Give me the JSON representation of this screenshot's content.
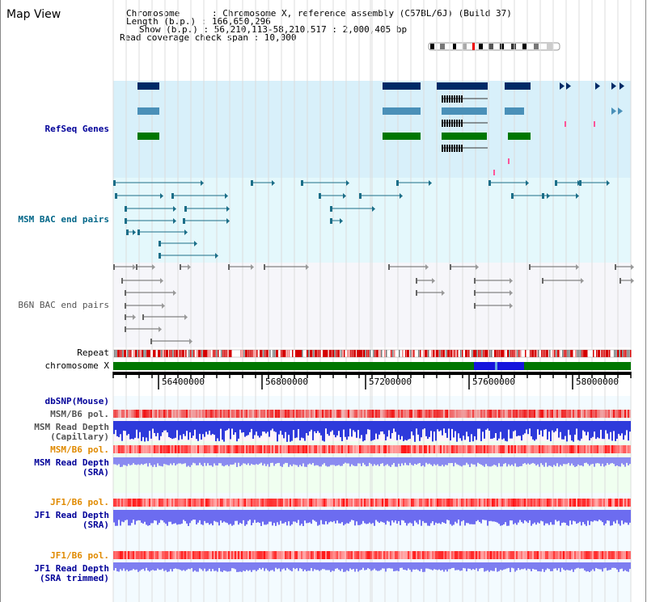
{
  "window": {
    "title": "Map View"
  },
  "header": {
    "chromosome_line": "Chromosome      : Chromosome X, reference assembly (C57BL/6J) (Build 37)",
    "length_line": "Length (b.p.) : 166,650,296",
    "show_line": "Show (b.p.) : 56,210,113-58,210,517 : 2,000,405 bp",
    "coverage_line": "Read coverage check span : 10,000"
  },
  "tracks": {
    "refseq": {
      "label": "RefSeq Genes",
      "color": "#000099"
    },
    "msm_bac": {
      "label": "MSM BAC end pairs",
      "color": "#006688"
    },
    "b6n_bac": {
      "label": "B6N BAC end pairs",
      "color": "#555555"
    },
    "repeat": {
      "label": "Repeat"
    },
    "chromosome": {
      "label": "chromosome X"
    },
    "dbsnp": {
      "label": "dbSNP(Mouse)"
    },
    "msm_b6_pol_1": {
      "label": "MSM/B6 pol."
    },
    "msm_depth_cap": {
      "line1": "MSM Read Depth",
      "line2": "(Capillary)"
    },
    "msm_b6_pol_2": {
      "label": "MSM/B6 pol."
    },
    "msm_depth_sra": {
      "line1": "MSM Read Depth",
      "line2": "(SRA)"
    },
    "jf1_b6_pol_1": {
      "label": "JF1/B6 pol."
    },
    "jf1_depth_sra": {
      "line1": "JF1 Read Depth",
      "line2": "(SRA)"
    },
    "jf1_b6_pol_2": {
      "label": "JF1/B6 pol."
    },
    "jf1_depth_trim": {
      "line1": "JF1 Read Depth",
      "line2": "(SRA trimmed)"
    }
  },
  "axis": {
    "ticks": [
      "56400000",
      "56800000",
      "57200000",
      "57600000",
      "58000000"
    ]
  },
  "colors": {
    "refseq_bg": "#d8f0fa",
    "msm_bg": "#e4f8fc",
    "b6n_bg": "#f6f6fa",
    "chrom_green": "#007700",
    "chrom_blue": "#1515dd",
    "label_blue": "#000099",
    "label_orange": "#e08a00",
    "label_gray": "#555555"
  }
}
